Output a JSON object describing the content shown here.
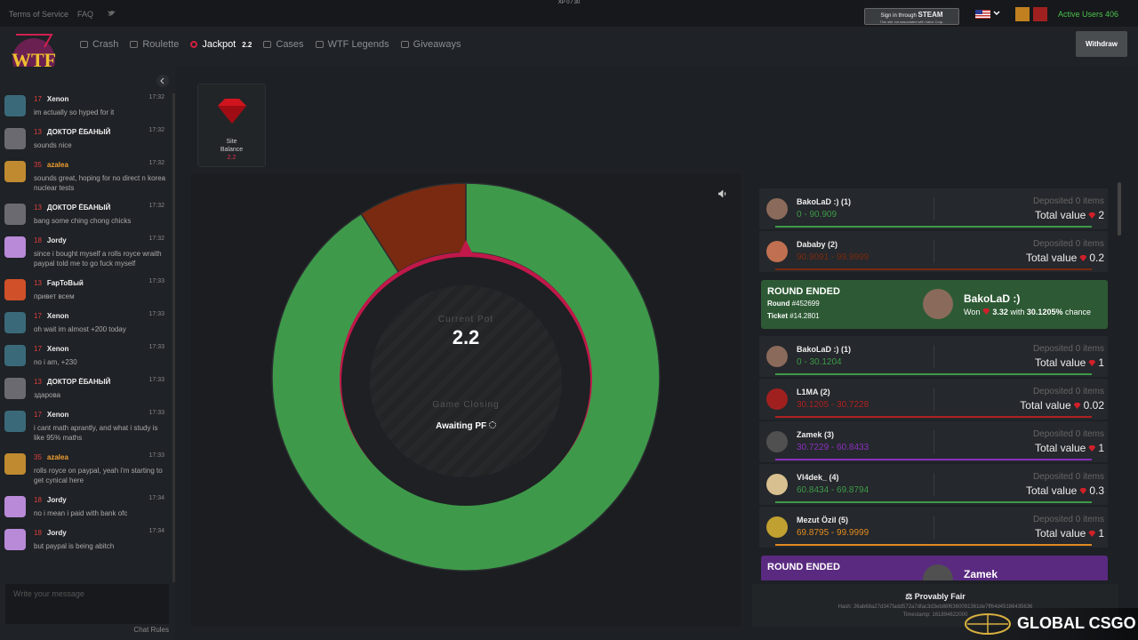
{
  "topbar": {
    "links": [
      "Terms of Service",
      "FAQ"
    ],
    "xp": "XP 0 / 30",
    "steam_top": "Sign in through",
    "steam_brand": "STEAM",
    "steam_note": "This site not associated with Valve Corp.",
    "active_users": "Active Users 406"
  },
  "logo": "WTF",
  "nav": {
    "items": [
      "Crash",
      "Roulette",
      "Jackpot",
      "Cases",
      "WTF Legends",
      "Giveaways"
    ],
    "jackpot_badge": "2.2",
    "withdraw": "Withdraw"
  },
  "chat": {
    "messages": [
      {
        "level": "17",
        "name": "Xenon",
        "time": "17:32",
        "text": "im actually so hyped for it",
        "avatar": "#3a6a7a"
      },
      {
        "level": "13",
        "name": "ДОКТОР ЁБАНЫЙ",
        "time": "17:32",
        "text": "sounds nice",
        "avatar": "#6a6a70"
      },
      {
        "level": "35",
        "name": "azalea",
        "time": "17:32",
        "text": "sounds great, hoping for no direct n korea nuclear tests",
        "avatar": "#c08a30",
        "name_color": "#f0a030"
      },
      {
        "level": "13",
        "name": "ДОКТОР ЁБАНЫЙ",
        "time": "17:32",
        "text": "bang some ching chong chicks",
        "avatar": "#6a6a70"
      },
      {
        "level": "18",
        "name": "Jordy",
        "time": "17:32",
        "text": "since i bought myself a rolls royce wraith paypal told me to go fuck myself",
        "avatar": "#b98ad8"
      },
      {
        "level": "13",
        "name": "FapToВый",
        "time": "17:33",
        "text": "привет всем",
        "avatar": "#d0502a"
      },
      {
        "level": "17",
        "name": "Xenon",
        "time": "17:33",
        "text": "oh wait im almost +200 today",
        "avatar": "#3a6a7a"
      },
      {
        "level": "17",
        "name": "Xenon",
        "time": "17:33",
        "text": "no i am, +230",
        "avatar": "#3a6a7a"
      },
      {
        "level": "13",
        "name": "ДОКТОР ЁБАНЫЙ",
        "time": "17:33",
        "text": "здарова",
        "avatar": "#6a6a70"
      },
      {
        "level": "17",
        "name": "Xenon",
        "time": "17:33",
        "text": "i cant math aprantly, and what i study is like 95% maths",
        "avatar": "#3a6a7a"
      },
      {
        "level": "35",
        "name": "azalea",
        "time": "17:33",
        "text": "rolls royce on paypal, yeah i'm starting to get cynical here",
        "avatar": "#c08a30",
        "name_color": "#f0a030"
      },
      {
        "level": "18",
        "name": "Jordy",
        "time": "17:34",
        "text": "no i mean i paid with bank ofc",
        "avatar": "#b98ad8"
      },
      {
        "level": "18",
        "name": "Jordy",
        "time": "17:34",
        "text": "but paypal is being abitch",
        "avatar": "#b98ad8"
      }
    ],
    "placeholder": "Write your message",
    "rules": "Chat Rules"
  },
  "balance": {
    "label_1": "Site",
    "label_2": "Balance",
    "value": "2.2"
  },
  "pot": {
    "label": "Current Pot",
    "value": "2.2",
    "status": "Game Closing",
    "awaiting": "Awaiting PF"
  },
  "feed": [
    {
      "kind": "entry",
      "name": "BakoLaD :) (1)",
      "range": "0 - 90.909",
      "deposited": "Deposited 0 items",
      "total_label": "Total value",
      "value": 2,
      "color": "#3e9a4a",
      "avatar": "#8a6a5a"
    },
    {
      "kind": "entry",
      "name": "Dababy (2)",
      "range": "90.9091 - 99.9999",
      "deposited": "Deposited 0 items",
      "total_label": "Total value",
      "value": 0.2,
      "color": "#7a2a10",
      "avatar": "#c07050"
    },
    {
      "kind": "round",
      "heading": "ROUND ENDED",
      "round_label": "Round",
      "round": "#452699",
      "ticket_label": "Ticket",
      "ticket": "#14.2801",
      "winner": "BakoLaD :)",
      "won_label": "Won",
      "won": "3.32",
      "with": "with",
      "chance": "30.1205%",
      "chance_label": "chance",
      "color": "#2d5a34"
    },
    {
      "kind": "entry",
      "name": "BakoLaD :) (1)",
      "range": "0 - 30.1204",
      "deposited": "Deposited 0 items",
      "total_label": "Total value",
      "value": 1,
      "color": "#3e9a4a",
      "avatar": "#8a6a5a"
    },
    {
      "kind": "entry",
      "name": "L1MA (2)",
      "range": "30.1205 - 30.7228",
      "deposited": "Deposited 0 items",
      "total_label": "Total value",
      "value": 0.02,
      "color": "#b02020",
      "avatar": "#a02020"
    },
    {
      "kind": "entry",
      "name": "Zamek (3)",
      "range": "30.7229 - 60.8433",
      "deposited": "Deposited 0 items",
      "total_label": "Total value",
      "value": 1,
      "color": "#8a30c0",
      "avatar": "#505050"
    },
    {
      "kind": "entry",
      "name": "Vl4dek_ (4)",
      "range": "60.8434 - 69.8794",
      "deposited": "Deposited 0 items",
      "total_label": "Total value",
      "value": 0.3,
      "color": "#3e9a4a",
      "avatar": "#d8c090"
    },
    {
      "kind": "entry",
      "name": "Mezut Özil (5)",
      "range": "69.8795 - 99.9999",
      "deposited": "Deposited 0 items",
      "total_label": "Total value",
      "value": 1,
      "color": "#e08a20",
      "avatar": "#c0a030"
    },
    {
      "kind": "round",
      "heading": "ROUND ENDED",
      "winner": "Zamek",
      "color": "#5a2a80"
    }
  ],
  "footer": {
    "title": "Provably Fair",
    "hash": "Hash: 26ab68a27d347fadd572a7dfac3d3eb88f6360091361de7ff64d45186435636",
    "timestamp": "Timestamp: 161894622000"
  },
  "watermark": "GLOBAL CSGO"
}
